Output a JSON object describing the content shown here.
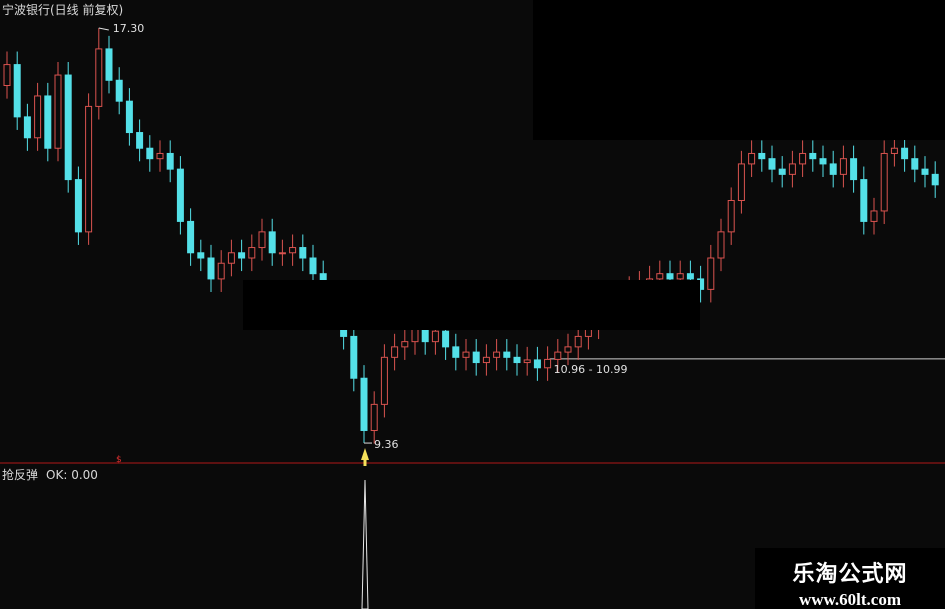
{
  "title": "宁波银行(日线 前复权)",
  "indicator": {
    "name": "抢反弹",
    "ok_label": "OK: 0.00",
    "signal_marker": "$"
  },
  "watermark": {
    "name": "乐淘公式网",
    "url": "www.60lt.com"
  },
  "colors": {
    "up": "#d9534f",
    "down": "#54e0e8",
    "background": "#0a0a0a",
    "separator": "#b01818",
    "arrow": "#f5e05a"
  },
  "chart_data": {
    "type": "candlestick",
    "title": "宁波银行(日线 前复权)",
    "ylim": [
      7.5,
      17.8
    ],
    "open": [
      16.2,
      16.6,
      15.6,
      15.2,
      16.0,
      15.0,
      16.4,
      14.4,
      13.4,
      15.8,
      16.9,
      16.3,
      15.9,
      15.3,
      15.0,
      14.8,
      14.9,
      14.6,
      13.6,
      13.0,
      12.9,
      12.5,
      12.8,
      13.0,
      12.9,
      13.1,
      13.4,
      13.0,
      13.0,
      13.1,
      12.9,
      12.6,
      12.2,
      11.8,
      11.4,
      10.6,
      9.6,
      10.1,
      11.0,
      11.2,
      11.3,
      11.6,
      11.3,
      11.5,
      11.2,
      11.0,
      11.1,
      10.9,
      11.0,
      11.1,
      11.0,
      10.9,
      10.95,
      10.8,
      10.96,
      11.1,
      11.2,
      11.4,
      11.6,
      11.8,
      12.0,
      12.1,
      12.3,
      12.4,
      12.5,
      12.6,
      12.5,
      12.6,
      12.5,
      12.3,
      12.9,
      13.4,
      14.0,
      14.7,
      14.9,
      14.8,
      14.6,
      14.5,
      14.7,
      14.9,
      14.8,
      14.7,
      14.5,
      14.8,
      14.4,
      13.6,
      13.8,
      14.9,
      15.0,
      14.8,
      14.6,
      14.5
    ],
    "close": [
      16.6,
      15.6,
      15.2,
      16.0,
      15.0,
      16.4,
      14.4,
      13.4,
      15.8,
      16.9,
      16.3,
      15.9,
      15.3,
      15.0,
      14.8,
      14.9,
      14.6,
      13.6,
      13.0,
      12.9,
      12.5,
      12.8,
      13.0,
      12.9,
      13.1,
      13.4,
      13.0,
      13.0,
      13.1,
      12.9,
      12.6,
      12.2,
      11.8,
      11.4,
      10.6,
      9.6,
      10.1,
      11.0,
      11.2,
      11.3,
      11.6,
      11.3,
      11.5,
      11.2,
      11.0,
      11.1,
      10.9,
      11.0,
      11.1,
      11.0,
      10.9,
      10.95,
      10.8,
      10.96,
      11.1,
      11.2,
      11.4,
      11.6,
      11.8,
      12.0,
      12.1,
      12.3,
      12.4,
      12.5,
      12.6,
      12.5,
      12.6,
      12.5,
      12.3,
      12.9,
      13.4,
      14.0,
      14.7,
      14.9,
      14.8,
      14.6,
      14.5,
      14.7,
      14.9,
      14.8,
      14.7,
      14.5,
      14.8,
      14.4,
      13.6,
      13.8,
      14.9,
      15.0,
      14.8,
      14.6,
      14.5,
      14.3
    ],
    "annotations": [
      {
        "index": 9,
        "value": 17.3,
        "label": "17.30",
        "kind": "high"
      },
      {
        "index": 35,
        "value": 9.36,
        "label": "9.36",
        "kind": "low"
      },
      {
        "index": 53,
        "value": 10.97,
        "label": "10.96 - 10.99",
        "kind": "range"
      }
    ],
    "signal_index": 35
  }
}
